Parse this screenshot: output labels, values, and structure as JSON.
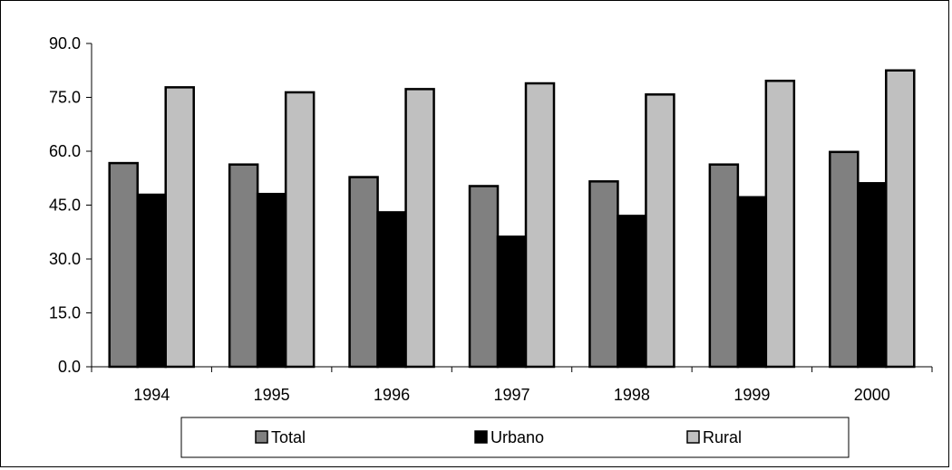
{
  "chart_data": {
    "type": "bar",
    "title": "",
    "xlabel": "",
    "ylabel": "",
    "categories": [
      "1994",
      "1995",
      "1996",
      "1997",
      "1998",
      "1999",
      "2000"
    ],
    "series": [
      {
        "name": "Total",
        "values": [
          56.7,
          56.3,
          52.8,
          50.3,
          51.6,
          56.3,
          59.8
        ],
        "color": "#808080"
      },
      {
        "name": "Urbano",
        "values": [
          47.9,
          48.1,
          43.0,
          36.2,
          42.0,
          47.2,
          51.1
        ],
        "color": "#000000"
      },
      {
        "name": "Rural",
        "values": [
          77.8,
          76.4,
          77.3,
          78.9,
          75.8,
          79.6,
          82.5
        ],
        "color": "#c0c0c0"
      }
    ],
    "ylim": [
      0,
      90
    ],
    "yticks": [
      0,
      15,
      30,
      45,
      60,
      75,
      90
    ],
    "ytick_labels": [
      "0.0",
      "15.0",
      "30.0",
      "45.0",
      "60.0",
      "75.0",
      "90.0"
    ],
    "grid": false,
    "legend_position": "bottom"
  }
}
